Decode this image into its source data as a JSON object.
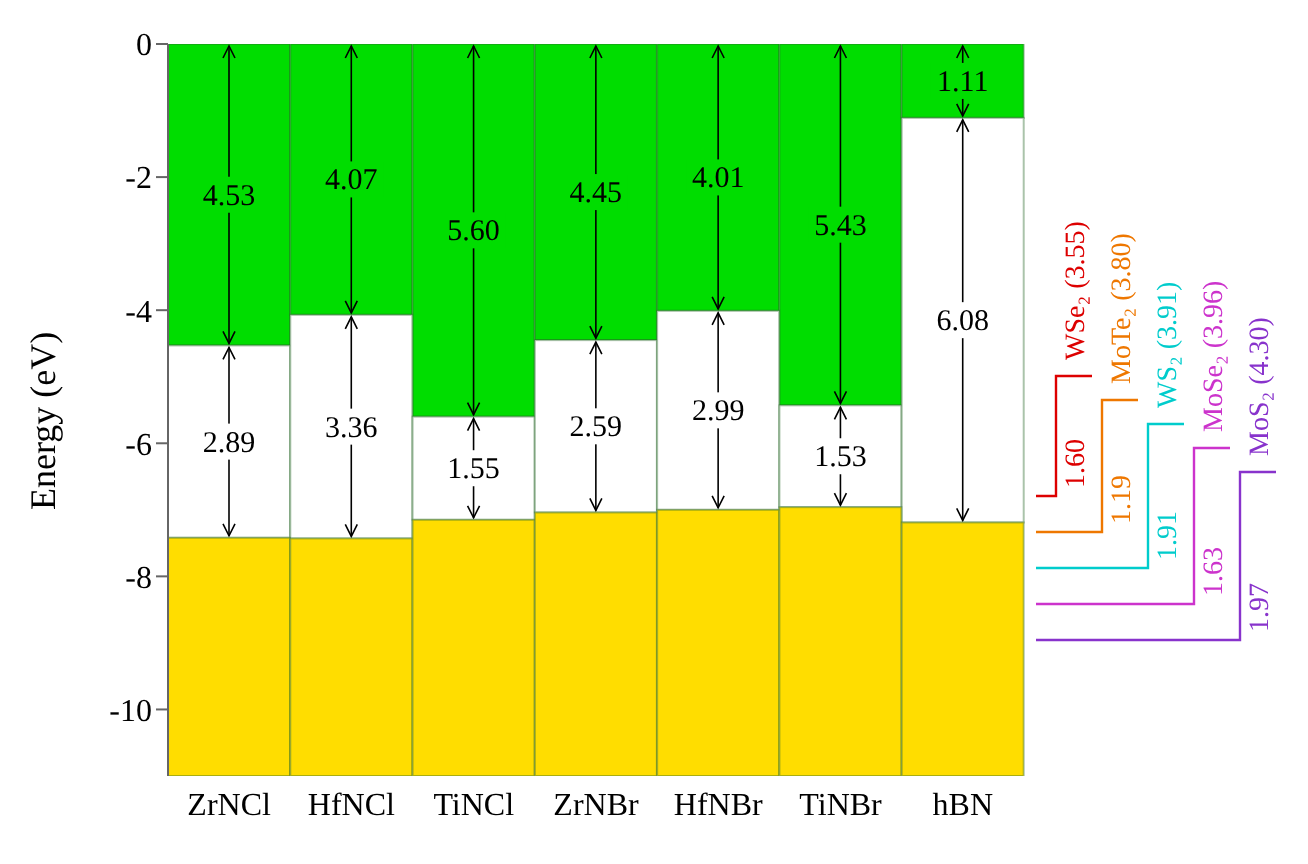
{
  "chart_data": {
    "type": "bar",
    "ylabel": "Energy (eV)",
    "categories": [
      "ZrNCl",
      "HfNCl",
      "TiNCl",
      "ZrNBr",
      "HfNBr",
      "TiNBr",
      "hBN"
    ],
    "series": [
      {
        "color": "#00dd00",
        "base": [
          -4.53,
          -4.07,
          -5.6,
          -4.45,
          -4.01,
          -5.43,
          -1.11
        ],
        "values": [
          4.53,
          4.07,
          5.6,
          4.45,
          4.01,
          5.43,
          1.11
        ],
        "value_labels": [
          "4.53",
          "4.07",
          "5.60",
          "4.45",
          "4.01",
          "5.43",
          "1.11"
        ]
      },
      {
        "color": "#ffffff",
        "base": [
          -7.42,
          -7.43,
          -7.15,
          -7.04,
          -7.0,
          -6.96,
          -7.19
        ],
        "values": [
          2.89,
          3.36,
          1.55,
          2.59,
          2.99,
          1.53,
          6.08
        ],
        "value_labels": [
          "2.89",
          "3.36",
          "1.55",
          "2.59",
          "2.99",
          "1.53",
          "6.08"
        ]
      },
      {
        "color": "#ffdd00",
        "base": [
          -11,
          -11,
          -11,
          -11,
          -11,
          -11,
          -11
        ],
        "values": [
          3.58,
          3.57,
          3.85,
          3.96,
          4.0,
          4.04,
          3.81
        ]
      }
    ],
    "ylim": [
      -11,
      0
    ],
    "yticks": [
      0,
      -2,
      -4,
      -6,
      -8,
      -10
    ],
    "annotations": [
      "WSe₂ (3.55)",
      "1.60",
      "MoTe₂ (3.80)",
      "1.19",
      "WS₂ (3.91)",
      "1.91",
      "MoSe₂ (3.96)",
      "1.63",
      "MoS₂ (4.30)",
      "1.97"
    ]
  }
}
